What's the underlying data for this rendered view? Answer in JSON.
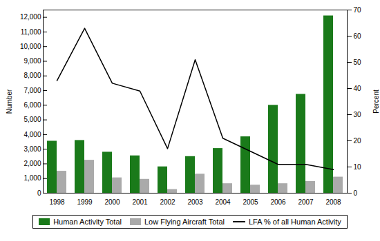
{
  "chart_data": {
    "type": "bar",
    "categories": [
      1998,
      1999,
      2000,
      2001,
      2002,
      2003,
      2004,
      2005,
      2006,
      2007,
      2008
    ],
    "series": [
      {
        "name": "Human Activity Total",
        "type": "bar",
        "color": "#1a7a1a",
        "values": [
          3550,
          3600,
          2800,
          2550,
          1800,
          2500,
          3050,
          3850,
          6000,
          6750,
          12100
        ]
      },
      {
        "name": "Low Flying Aircraft Total",
        "type": "bar",
        "color": "#aaaaaa",
        "values": [
          1500,
          2250,
          1050,
          950,
          250,
          1300,
          650,
          550,
          650,
          800,
          1100
        ]
      },
      {
        "name": "LFA % of all Human Activity",
        "type": "line",
        "color": "#000000",
        "axis": "y2",
        "values": [
          43,
          63,
          42,
          39,
          17,
          51,
          21,
          16,
          11,
          11,
          9
        ]
      }
    ],
    "ylabel": "Number",
    "y2label": "Percent",
    "ylim": [
      0,
      12500
    ],
    "yticks": [
      0,
      {
        "value": 1000,
        "label": "1,000"
      },
      {
        "value": 2000,
        "label": "2,000"
      },
      {
        "value": 3000,
        "label": "3,000"
      },
      {
        "value": 4000,
        "label": "4,000"
      },
      {
        "value": 5000,
        "label": "5,000"
      },
      {
        "value": 6000,
        "label": "6,000"
      },
      {
        "value": 7000,
        "label": "7,000"
      },
      {
        "value": 8000,
        "label": "8,000"
      },
      {
        "value": 9000,
        "label": "9,000"
      },
      {
        "value": 10000,
        "label": "10,000"
      },
      {
        "value": 11000,
        "label": "11,000"
      },
      {
        "value": 12000,
        "label": "12,000"
      }
    ],
    "y2lim": [
      0,
      70
    ],
    "y2ticks": [
      0,
      10,
      20,
      30,
      40,
      50,
      60,
      70
    ],
    "grid": false,
    "legend": "bottom"
  }
}
